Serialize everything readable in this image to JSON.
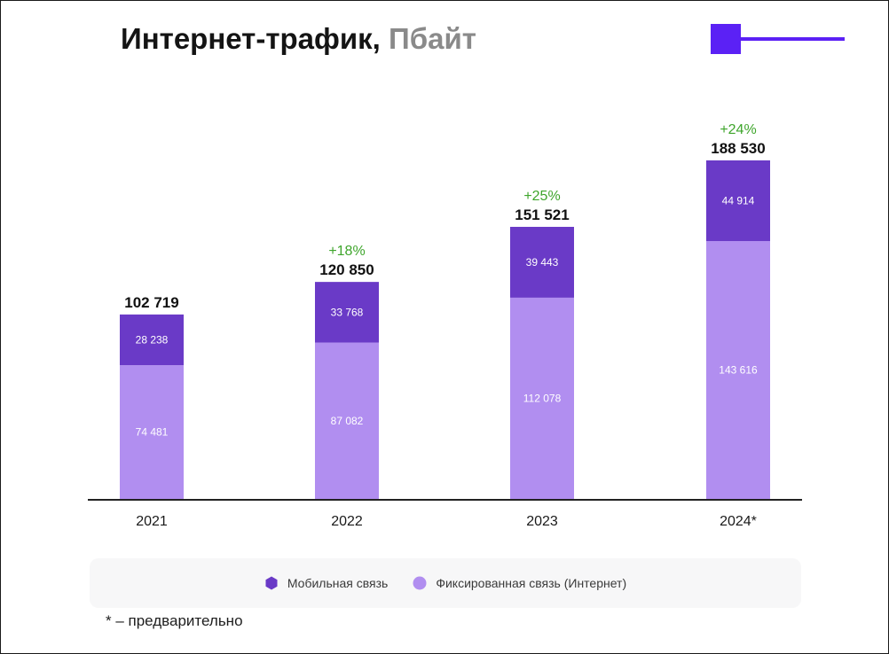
{
  "title": {
    "main": "Интернет-трафик,",
    "unit": "Пбайт"
  },
  "footnote": "* – предварительно",
  "colors": {
    "mobile": "#6a3ac7",
    "fixed": "#b18ef0",
    "growth": "#3ea52b",
    "accent": "#5b21f5"
  },
  "legend": [
    {
      "label": "Мобильная связь",
      "color": "#6a3ac7",
      "icon": "hexagon-icon"
    },
    {
      "label": "Фиксированная связь (Интернет)",
      "color": "#b18ef0",
      "icon": "circle-icon"
    }
  ],
  "chart_data": {
    "type": "bar",
    "stacked": true,
    "categories": [
      "2021",
      "2022",
      "2023",
      "2024*"
    ],
    "series": [
      {
        "name": "Фиксированная связь (Интернет)",
        "values": [
          74481,
          87082,
          112078,
          143616
        ],
        "labels": [
          "74 481",
          "87 082",
          "112 078",
          "143 616"
        ]
      },
      {
        "name": "Мобильная связь",
        "values": [
          28238,
          33768,
          39443,
          44914
        ],
        "labels": [
          "28 238",
          "33 768",
          "39 443",
          "44 914"
        ]
      }
    ],
    "totals": [
      102719,
      120850,
      151521,
      188530
    ],
    "total_labels": [
      "102 719",
      "120 850",
      "151 521",
      "188 530"
    ],
    "growth_labels": [
      "",
      "+18%",
      "+25%",
      "+24%"
    ],
    "title": "Интернет-трафик, Пбайт",
    "ylim": [
      0,
      188530
    ],
    "grid": false,
    "legend_position": "bottom"
  }
}
